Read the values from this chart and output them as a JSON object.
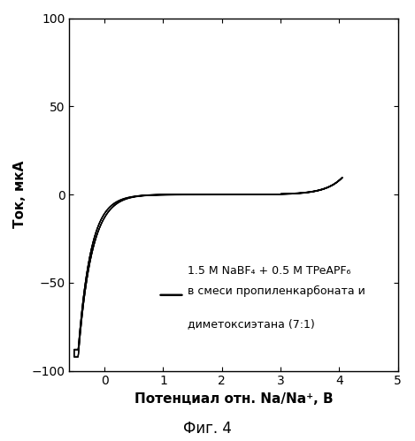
{
  "xlabel": "Потенциал отн. Na/Na⁺, В",
  "ylabel": "Ток, мкА",
  "xlim": [
    -0.6,
    5.0
  ],
  "ylim": [
    -100,
    100
  ],
  "xticks": [
    0,
    1,
    2,
    3,
    4,
    5
  ],
  "yticks": [
    -100,
    -50,
    0,
    50,
    100
  ],
  "caption": "Фиг. 4",
  "legend_line1": "1.5 M NaBF₄ + 0.5 M TPeAPF₆",
  "legend_line2": "в смеси пропиленкарбоната и",
  "legend_line3": "диметоксиэтана (7:1)",
  "line_color": "#000000",
  "bg_color": "#ffffff",
  "figsize": [
    4.69,
    4.99
  ],
  "dpi": 100
}
